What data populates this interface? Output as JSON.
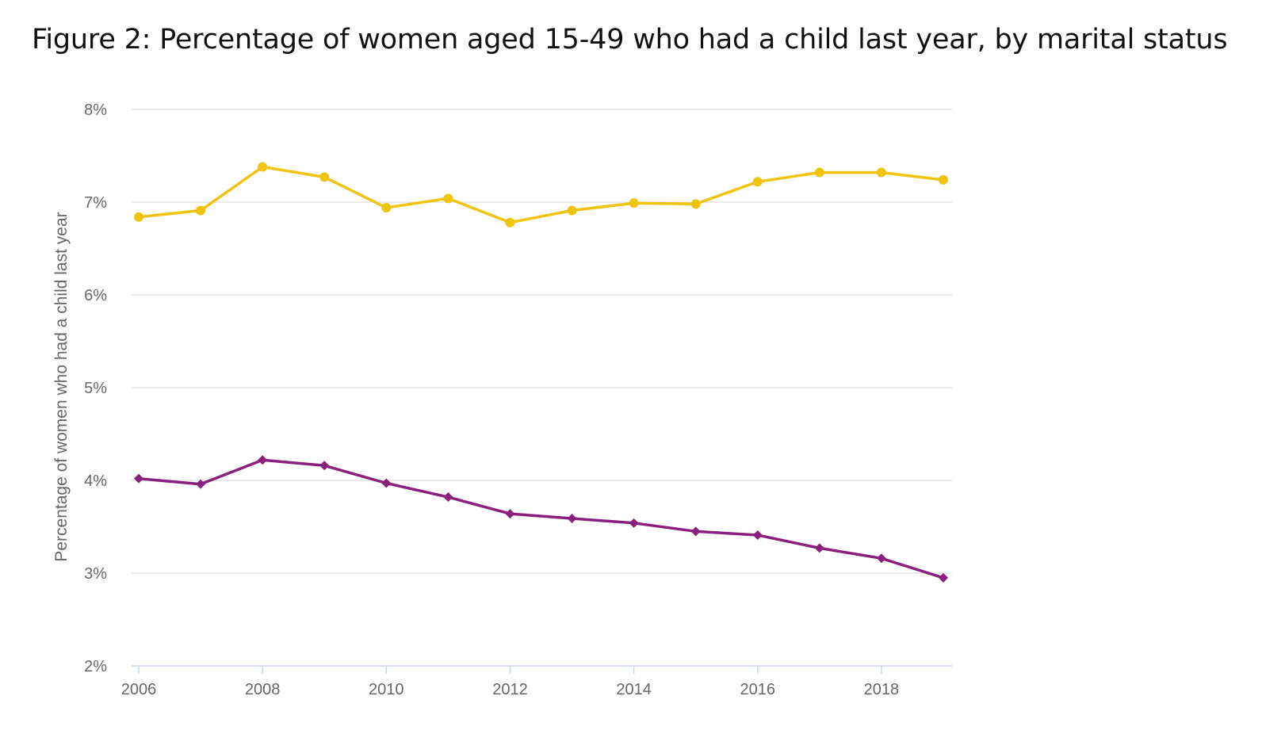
{
  "chart_data": {
    "type": "line",
    "title": "Figure 2: Percentage of women aged 15-49 who had a child last year, by marital status",
    "xlabel": "",
    "ylabel": "Percentage of women who had a child last year",
    "x": [
      2006,
      2007,
      2008,
      2009,
      2010,
      2011,
      2012,
      2013,
      2014,
      2015,
      2016,
      2017,
      2018,
      2019
    ],
    "xticks": [
      "2006",
      "2008",
      "2010",
      "2012",
      "2014",
      "2016",
      "2018"
    ],
    "xlim": [
      2006,
      2019
    ],
    "ylim": [
      2,
      8
    ],
    "yticks": [
      "2%",
      "3%",
      "4%",
      "5%",
      "6%",
      "7%",
      "8%"
    ],
    "grid": true,
    "legend": "none",
    "series": [
      {
        "color": "#f0c30f",
        "marker": "circle",
        "values": [
          6.84,
          6.91,
          7.38,
          7.27,
          6.94,
          7.04,
          6.78,
          6.91,
          6.99,
          6.98,
          7.22,
          7.32,
          7.32,
          7.24
        ]
      },
      {
        "color": "#8b1f7e",
        "marker": "diamond",
        "values": [
          4.02,
          3.96,
          4.22,
          4.16,
          3.97,
          3.82,
          3.64,
          3.59,
          3.54,
          3.45,
          3.41,
          3.27,
          3.16,
          2.95
        ]
      }
    ]
  }
}
